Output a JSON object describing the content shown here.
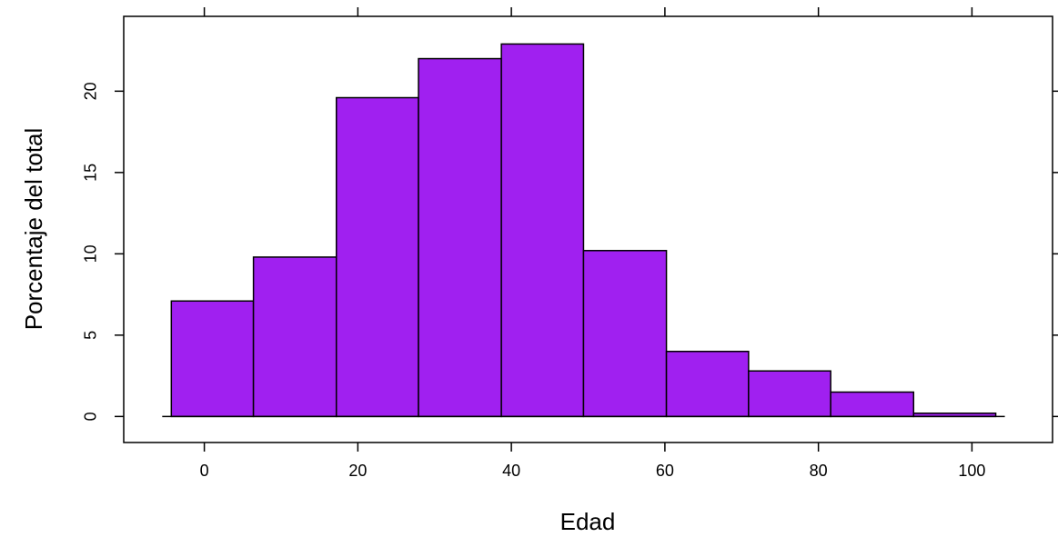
{
  "chart_data": {
    "type": "bar",
    "xlabel": "Edad",
    "ylabel": "Porcentaje del total",
    "xlim": [
      -10.5,
      110.5
    ],
    "ylim": [
      -1.6,
      24.6
    ],
    "xticks": [
      0,
      20,
      40,
      60,
      80,
      100
    ],
    "yticks": [
      0,
      5,
      10,
      15,
      20
    ],
    "bins": [
      {
        "x0": -4.3,
        "x1": 6.4,
        "value": 7.1
      },
      {
        "x0": 6.4,
        "x1": 17.2,
        "value": 9.8
      },
      {
        "x0": 17.2,
        "x1": 27.9,
        "value": 19.6
      },
      {
        "x0": 27.9,
        "x1": 38.7,
        "value": 22.0
      },
      {
        "x0": 38.7,
        "x1": 49.4,
        "value": 22.9
      },
      {
        "x0": 49.4,
        "x1": 60.2,
        "value": 10.2
      },
      {
        "x0": 60.2,
        "x1": 70.9,
        "value": 4.0
      },
      {
        "x0": 70.9,
        "x1": 81.6,
        "value": 2.8
      },
      {
        "x0": 81.6,
        "x1": 92.4,
        "value": 1.5
      },
      {
        "x0": 92.4,
        "x1": 103.1,
        "value": 0.2
      }
    ],
    "grid": false,
    "colors": {
      "bar_fill": "#a020f0",
      "bar_stroke": "#000000",
      "axis": "#000000"
    }
  }
}
